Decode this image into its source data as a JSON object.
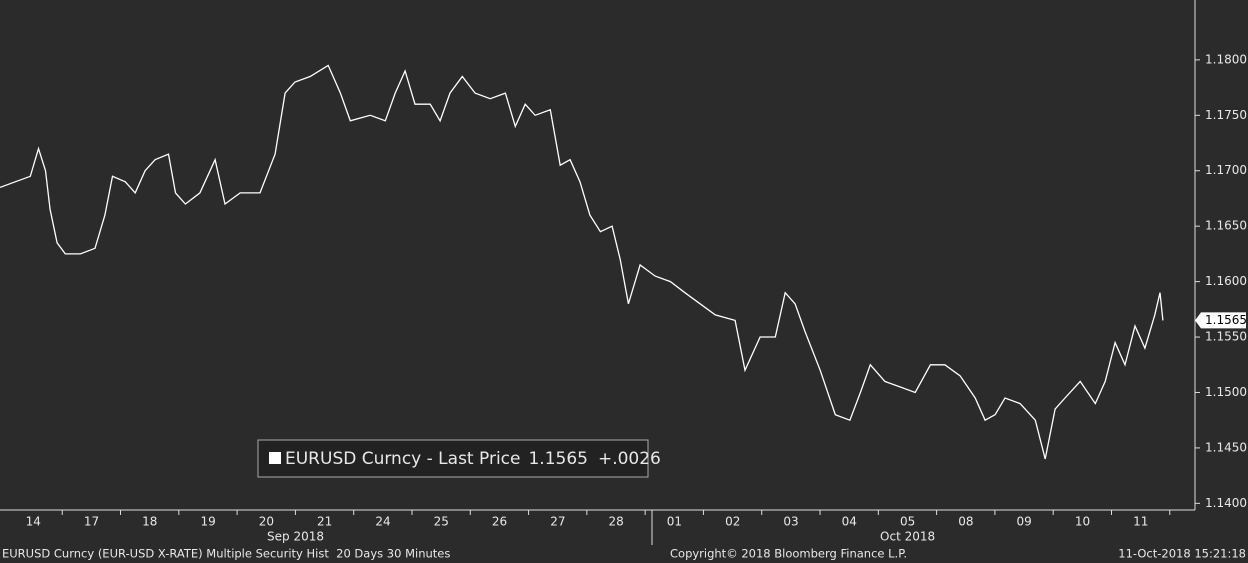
{
  "chart_data": {
    "type": "line",
    "series": [
      {
        "name": "EURUSD Curncy - Last Price",
        "color": "#ffffff",
        "x": [
          -0.57,
          -0.31,
          -0.05,
          0.09,
          0.21,
          0.29,
          0.41,
          0.55,
          0.81,
          1.06,
          1.23,
          1.36,
          1.58,
          1.75,
          1.92,
          2.09,
          2.32,
          2.44,
          2.61,
          2.86,
          3.12,
          3.29,
          3.55,
          3.89,
          4.15,
          4.32,
          4.49,
          4.75,
          5.06,
          5.27,
          5.44,
          5.78,
          6.04,
          6.21,
          6.38,
          6.55,
          6.81,
          6.98,
          7.15,
          7.36,
          7.58,
          7.84,
          8.1,
          8.27,
          8.44,
          8.61,
          8.87,
          9.04,
          9.21,
          9.38,
          9.55,
          9.73,
          9.93,
          10.07,
          10.21,
          10.41,
          10.67,
          10.93,
          11.18,
          11.44,
          11.7,
          12.04,
          12.21,
          12.47,
          12.73,
          12.9,
          13.07,
          13.24,
          13.5,
          13.76,
          14.01,
          14.19,
          14.36,
          14.61,
          14.87,
          15.13,
          15.39,
          15.64,
          15.9,
          16.16,
          16.33,
          16.5,
          16.67,
          16.93,
          17.19,
          17.36,
          17.53,
          17.7,
          17.96,
          18.22,
          18.39,
          18.56,
          18.73,
          18.9,
          19.07,
          19.24,
          19.33,
          19.38
        ],
        "values": [
          1.1685,
          1.169,
          1.1695,
          1.172,
          1.17,
          1.1665,
          1.1635,
          1.1625,
          1.1625,
          1.163,
          1.166,
          1.1695,
          1.169,
          1.168,
          1.17,
          1.171,
          1.1715,
          1.168,
          1.167,
          1.168,
          1.171,
          1.167,
          1.168,
          1.168,
          1.1715,
          1.177,
          1.178,
          1.1785,
          1.1795,
          1.177,
          1.1745,
          1.175,
          1.1745,
          1.177,
          1.179,
          1.176,
          1.176,
          1.1745,
          1.177,
          1.1785,
          1.177,
          1.1765,
          1.177,
          1.174,
          1.176,
          1.175,
          1.1755,
          1.1705,
          1.171,
          1.169,
          1.166,
          1.1645,
          1.165,
          1.162,
          1.158,
          1.1615,
          1.1605,
          1.16,
          1.159,
          1.158,
          1.157,
          1.1565,
          1.152,
          1.155,
          1.155,
          1.159,
          1.158,
          1.1555,
          1.152,
          1.148,
          1.1475,
          1.15,
          1.1525,
          1.151,
          1.1505,
          1.15,
          1.1525,
          1.1525,
          1.1515,
          1.1495,
          1.1475,
          1.148,
          1.1495,
          1.149,
          1.1475,
          1.144,
          1.1485,
          1.1495,
          1.151,
          1.149,
          1.151,
          1.1545,
          1.1525,
          1.156,
          1.154,
          1.157,
          1.159,
          1.1565
        ]
      }
    ],
    "last_price": 1.1565,
    "change_label": "+.0026",
    "xlim": [
      -0.57,
      19.93
    ],
    "ylim": [
      1.1394,
      1.1854
    ],
    "xticks": [
      {
        "value": 0,
        "label": "14"
      },
      {
        "value": 1,
        "label": "17"
      },
      {
        "value": 2,
        "label": "18"
      },
      {
        "value": 3,
        "label": "19"
      },
      {
        "value": 4,
        "label": "20"
      },
      {
        "value": 5,
        "label": "21"
      },
      {
        "value": 6,
        "label": "24"
      },
      {
        "value": 7,
        "label": "25"
      },
      {
        "value": 8,
        "label": "26"
      },
      {
        "value": 9,
        "label": "27"
      },
      {
        "value": 10,
        "label": "28"
      },
      {
        "value": 11,
        "label": "01"
      },
      {
        "value": 12,
        "label": "02"
      },
      {
        "value": 13,
        "label": "03"
      },
      {
        "value": 14,
        "label": "04"
      },
      {
        "value": 15,
        "label": "05"
      },
      {
        "value": 16,
        "label": "08"
      },
      {
        "value": 17,
        "label": "09"
      },
      {
        "value": 18,
        "label": "10"
      },
      {
        "value": 19,
        "label": "11"
      }
    ],
    "yticks": [
      {
        "value": 1.14,
        "label": "1.1400"
      },
      {
        "value": 1.145,
        "label": "1.1450"
      },
      {
        "value": 1.15,
        "label": "1.1500"
      },
      {
        "value": 1.155,
        "label": "1.1550"
      },
      {
        "value": 1.16,
        "label": "1.1600"
      },
      {
        "value": 1.165,
        "label": "1.1650"
      },
      {
        "value": 1.17,
        "label": "1.1700"
      },
      {
        "value": 1.175,
        "label": "1.1750"
      },
      {
        "value": 1.18,
        "label": "1.1800"
      }
    ],
    "month_labels": [
      {
        "text": "Sep 2018",
        "x": 4.5
      },
      {
        "text": "Oct 2018",
        "x": 15.0
      }
    ],
    "footer_left": "EURUSD Curncy (EUR-USD X-RATE) Multiple Security Hist  20 Days 30 Minutes",
    "footer_center": "Copyright© 2018 Bloomberg Finance L.P.",
    "footer_right": "11-Oct-2018 15:21:18"
  }
}
